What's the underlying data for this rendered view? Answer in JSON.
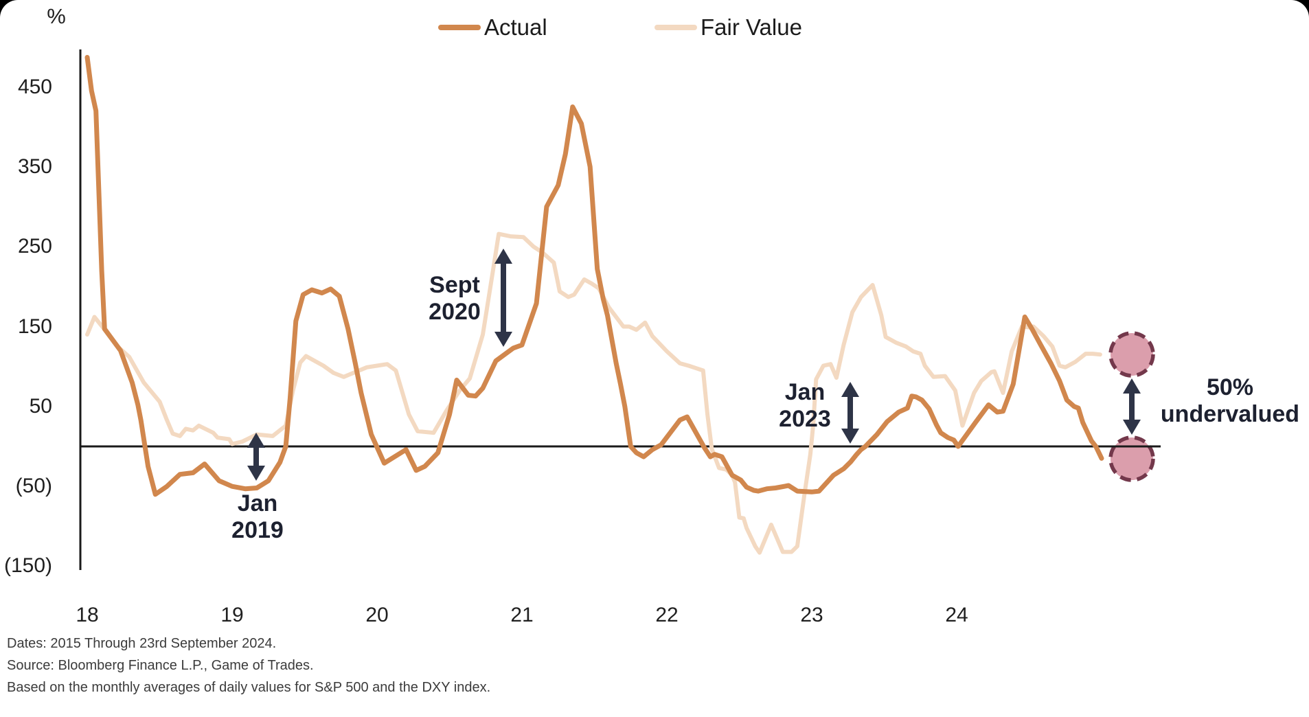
{
  "colors": {
    "actual": "#D1874D",
    "fair_value": "#F3D9C1",
    "axis": "#1A1A1A",
    "arrow": "#2E3447",
    "annotation_text": "#1D2130",
    "marker_fill": "#DB9EAC",
    "marker_stroke": "#73384B"
  },
  "legend": {
    "items": [
      {
        "label": "Actual",
        "color": "#D1874D"
      },
      {
        "label": "Fair Value",
        "color": "#F3D9C1"
      }
    ]
  },
  "axes": {
    "unit_label": "%",
    "y_ticks": [
      {
        "label": "450",
        "value": 450
      },
      {
        "label": "350",
        "value": 350
      },
      {
        "label": "250",
        "value": 250
      },
      {
        "label": "150",
        "value": 150
      },
      {
        "label": "50",
        "value": 50
      },
      {
        "label": "(50)",
        "value": -50
      },
      {
        "label": "(150)",
        "value": -150
      }
    ],
    "x_ticks": [
      {
        "label": "18",
        "year": 2018
      },
      {
        "label": "19",
        "year": 2019
      },
      {
        "label": "20",
        "year": 2020
      },
      {
        "label": "21",
        "year": 2021
      },
      {
        "label": "22",
        "year": 2022
      },
      {
        "label": "23",
        "year": 2023
      },
      {
        "label": "24",
        "year": 2024
      }
    ]
  },
  "annotations": {
    "callouts": [
      {
        "id": "jan-2019",
        "lines": [
          "Jan",
          "2019"
        ]
      },
      {
        "id": "sept-2020",
        "lines": [
          "Sept",
          "2020"
        ]
      },
      {
        "id": "jan-2023",
        "lines": [
          "Jan",
          "2023"
        ]
      },
      {
        "id": "undervalued",
        "lines": [
          "50%",
          "undervalued"
        ]
      }
    ]
  },
  "footer": {
    "lines": [
      "Dates: 2015 Through 23rd September 2024.",
      "Source: Bloomberg Finance L.P., Game of Trades.",
      "Based on the monthly averages of daily values for S&P 500 and the DXY index."
    ]
  },
  "chart_data": {
    "type": "line",
    "title": "",
    "xlabel": "",
    "ylabel": "%",
    "x_range": [
      2018,
      2025
    ],
    "ylim": [
      -175,
      510
    ],
    "y_tick_values": [
      450,
      350,
      250,
      150,
      50,
      -50,
      -150
    ],
    "grid": false,
    "zero_line": true,
    "legend_position": "top-center",
    "series": [
      {
        "name": "Fair Value",
        "color": "#F3D9C1",
        "points": [
          [
            2018.0,
            140
          ],
          [
            2018.05,
            162
          ],
          [
            2018.13,
            144
          ],
          [
            2018.21,
            125
          ],
          [
            2018.29,
            112
          ],
          [
            2018.39,
            80
          ],
          [
            2018.5,
            56
          ],
          [
            2018.55,
            33
          ],
          [
            2018.59,
            16
          ],
          [
            2018.64,
            13
          ],
          [
            2018.68,
            22
          ],
          [
            2018.73,
            20
          ],
          [
            2018.77,
            26
          ],
          [
            2018.87,
            17
          ],
          [
            2018.9,
            11
          ],
          [
            2018.98,
            9
          ],
          [
            2019.0,
            3
          ],
          [
            2019.07,
            6
          ],
          [
            2019.17,
            15
          ],
          [
            2019.28,
            13
          ],
          [
            2019.37,
            26
          ],
          [
            2019.42,
            70
          ],
          [
            2019.47,
            105
          ],
          [
            2019.51,
            113
          ],
          [
            2019.56,
            108
          ],
          [
            2019.63,
            101
          ],
          [
            2019.7,
            92
          ],
          [
            2019.77,
            87
          ],
          [
            2019.85,
            93
          ],
          [
            2019.93,
            99
          ],
          [
            2020.0,
            101
          ],
          [
            2020.07,
            103
          ],
          [
            2020.13,
            95
          ],
          [
            2020.22,
            40
          ],
          [
            2020.28,
            19
          ],
          [
            2020.39,
            17
          ],
          [
            2020.48,
            45
          ],
          [
            2020.57,
            70
          ],
          [
            2020.64,
            85
          ],
          [
            2020.73,
            140
          ],
          [
            2020.8,
            220
          ],
          [
            2020.84,
            266
          ],
          [
            2020.92,
            263
          ],
          [
            2021.01,
            262
          ],
          [
            2021.08,
            250
          ],
          [
            2021.14,
            243
          ],
          [
            2021.22,
            230
          ],
          [
            2021.26,
            194
          ],
          [
            2021.32,
            187
          ],
          [
            2021.36,
            190
          ],
          [
            2021.43,
            209
          ],
          [
            2021.48,
            204
          ],
          [
            2021.53,
            198
          ],
          [
            2021.6,
            174
          ],
          [
            2021.7,
            150
          ],
          [
            2021.74,
            150
          ],
          [
            2021.79,
            146
          ],
          [
            2021.85,
            155
          ],
          [
            2021.9,
            138
          ],
          [
            2022.0,
            119
          ],
          [
            2022.09,
            104
          ],
          [
            2022.15,
            101
          ],
          [
            2022.25,
            95
          ],
          [
            2022.28,
            40
          ],
          [
            2022.31,
            -3
          ],
          [
            2022.36,
            -27
          ],
          [
            2022.41,
            -29
          ],
          [
            2022.45,
            -36
          ],
          [
            2022.47,
            -45
          ],
          [
            2022.5,
            -89
          ],
          [
            2022.53,
            -90
          ],
          [
            2022.55,
            -102
          ],
          [
            2022.61,
            -125
          ],
          [
            2022.64,
            -133
          ],
          [
            2022.72,
            -98
          ],
          [
            2022.8,
            -132
          ],
          [
            2022.86,
            -132
          ],
          [
            2022.9,
            -125
          ],
          [
            2022.95,
            -59
          ],
          [
            2022.99,
            -10
          ],
          [
            2023.01,
            27
          ],
          [
            2023.03,
            84
          ],
          [
            2023.08,
            101
          ],
          [
            2023.13,
            103
          ],
          [
            2023.17,
            86
          ],
          [
            2023.22,
            127
          ],
          [
            2023.28,
            168
          ],
          [
            2023.34,
            187
          ],
          [
            2023.42,
            202
          ],
          [
            2023.48,
            164
          ],
          [
            2023.51,
            137
          ],
          [
            2023.58,
            130
          ],
          [
            2023.65,
            125
          ],
          [
            2023.7,
            119
          ],
          [
            2023.75,
            116
          ],
          [
            2023.78,
            101
          ],
          [
            2023.84,
            87
          ],
          [
            2023.92,
            88
          ],
          [
            2023.99,
            70
          ],
          [
            2024.04,
            26
          ],
          [
            2024.12,
            67
          ],
          [
            2024.17,
            82
          ],
          [
            2024.24,
            93
          ],
          [
            2024.26,
            94
          ],
          [
            2024.32,
            67
          ],
          [
            2024.38,
            119
          ],
          [
            2024.45,
            150
          ],
          [
            2024.5,
            149
          ],
          [
            2024.53,
            150
          ],
          [
            2024.6,
            138
          ],
          [
            2024.66,
            125
          ],
          [
            2024.71,
            101
          ],
          [
            2024.75,
            99
          ],
          [
            2024.82,
            106
          ],
          [
            2024.89,
            116
          ],
          [
            2024.94,
            116
          ],
          [
            2024.99,
            115
          ]
        ]
      },
      {
        "name": "Actual",
        "color": "#D1874D",
        "points": [
          [
            2018.0,
            487
          ],
          [
            2018.03,
            445
          ],
          [
            2018.06,
            420
          ],
          [
            2018.1,
            220
          ],
          [
            2018.12,
            147
          ],
          [
            2018.23,
            120
          ],
          [
            2018.31,
            80
          ],
          [
            2018.35,
            52
          ],
          [
            2018.37,
            33
          ],
          [
            2018.42,
            -25
          ],
          [
            2018.47,
            -60
          ],
          [
            2018.55,
            -50
          ],
          [
            2018.64,
            -35
          ],
          [
            2018.73,
            -33
          ],
          [
            2018.81,
            -22
          ],
          [
            2018.91,
            -43
          ],
          [
            2019.0,
            -50
          ],
          [
            2019.09,
            -53
          ],
          [
            2019.17,
            -52
          ],
          [
            2019.25,
            -43
          ],
          [
            2019.33,
            -20
          ],
          [
            2019.37,
            0
          ],
          [
            2019.4,
            60
          ],
          [
            2019.44,
            157
          ],
          [
            2019.49,
            190
          ],
          [
            2019.55,
            196
          ],
          [
            2019.62,
            192
          ],
          [
            2019.68,
            197
          ],
          [
            2019.74,
            188
          ],
          [
            2019.8,
            147
          ],
          [
            2019.85,
            104
          ],
          [
            2019.89,
            67
          ],
          [
            2019.96,
            15
          ],
          [
            2020.05,
            -21
          ],
          [
            2020.2,
            -4
          ],
          [
            2020.27,
            -30
          ],
          [
            2020.33,
            -25
          ],
          [
            2020.42,
            -8
          ],
          [
            2020.5,
            40
          ],
          [
            2020.55,
            83
          ],
          [
            2020.63,
            64
          ],
          [
            2020.68,
            63
          ],
          [
            2020.73,
            73
          ],
          [
            2020.82,
            107
          ],
          [
            2020.94,
            123
          ],
          [
            2021.0,
            127
          ],
          [
            2021.1,
            179
          ],
          [
            2021.17,
            300
          ],
          [
            2021.25,
            327
          ],
          [
            2021.3,
            366
          ],
          [
            2021.35,
            425
          ],
          [
            2021.41,
            404
          ],
          [
            2021.47,
            350
          ],
          [
            2021.52,
            222
          ],
          [
            2021.56,
            185
          ],
          [
            2021.59,
            164
          ],
          [
            2021.65,
            104
          ],
          [
            2021.68,
            78
          ],
          [
            2021.71,
            50
          ],
          [
            2021.75,
            0
          ],
          [
            2021.79,
            -8
          ],
          [
            2021.84,
            -13
          ],
          [
            2021.9,
            -4
          ],
          [
            2021.96,
            2
          ],
          [
            2022.09,
            33
          ],
          [
            2022.14,
            37
          ],
          [
            2022.26,
            -2
          ],
          [
            2022.3,
            -13
          ],
          [
            2022.33,
            -10
          ],
          [
            2022.38,
            -13
          ],
          [
            2022.45,
            -36
          ],
          [
            2022.51,
            -42
          ],
          [
            2022.55,
            -51
          ],
          [
            2022.6,
            -55
          ],
          [
            2022.63,
            -56
          ],
          [
            2022.69,
            -53
          ],
          [
            2022.75,
            -52
          ],
          [
            2022.84,
            -49
          ],
          [
            2022.9,
            -56
          ],
          [
            2023.0,
            -57
          ],
          [
            2023.05,
            -56
          ],
          [
            2023.1,
            -46
          ],
          [
            2023.15,
            -36
          ],
          [
            2023.22,
            -28
          ],
          [
            2023.27,
            -19
          ],
          [
            2023.31,
            -10
          ],
          [
            2023.34,
            -4
          ],
          [
            2023.37,
            0
          ],
          [
            2023.45,
            15
          ],
          [
            2023.52,
            31
          ],
          [
            2023.6,
            43
          ],
          [
            2023.66,
            48
          ],
          [
            2023.69,
            63
          ],
          [
            2023.72,
            62
          ],
          [
            2023.76,
            58
          ],
          [
            2023.81,
            47
          ],
          [
            2023.86,
            27
          ],
          [
            2023.89,
            17
          ],
          [
            2023.94,
            11
          ],
          [
            2023.98,
            8
          ],
          [
            2024.01,
            0
          ],
          [
            2024.13,
            30
          ],
          [
            2024.22,
            52
          ],
          [
            2024.28,
            43
          ],
          [
            2024.32,
            44
          ],
          [
            2024.39,
            78
          ],
          [
            2024.47,
            162
          ],
          [
            2024.52,
            147
          ],
          [
            2024.58,
            127
          ],
          [
            2024.65,
            104
          ],
          [
            2024.71,
            82
          ],
          [
            2024.76,
            58
          ],
          [
            2024.81,
            50
          ],
          [
            2024.84,
            48
          ],
          [
            2024.87,
            30
          ],
          [
            2024.93,
            7
          ],
          [
            2024.96,
            0
          ],
          [
            2025.0,
            -15
          ]
        ]
      }
    ],
    "annotation_values": {
      "jan_2019_actual": -50,
      "sept_2020_fair_value": 265,
      "jan_2023_gap_top": 85,
      "final_fair_value": 115,
      "final_actual": -15,
      "final_gap_label": "50% undervalued"
    }
  }
}
